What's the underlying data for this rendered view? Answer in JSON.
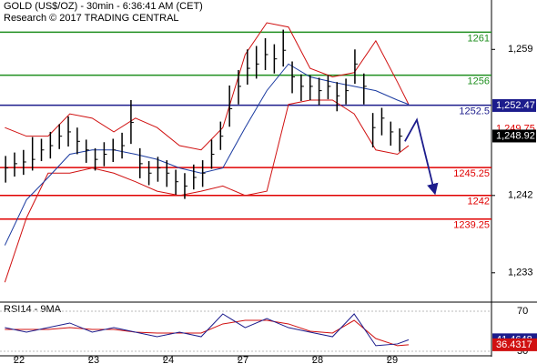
{
  "chart_data": {
    "type": "ohlc",
    "title": "GOLD (US$/OZ) - 30min - 6:36:41 AM (CET)",
    "subtitle": "Research © 2017 TRADING CENTRAL",
    "color": "#000000",
    "x": [
      -0.12,
      0,
      0.12,
      0.24,
      0.36,
      0.48,
      0.6,
      0.72,
      0.84,
      0.96,
      1.08,
      1.2,
      1.32,
      1.44,
      1.56,
      1.68,
      1.8,
      1.92,
      2.04,
      2.16,
      2.28,
      2.4,
      2.52,
      2.64,
      2.76,
      2.88,
      3,
      3.12,
      3.24,
      3.36,
      3.48,
      3.6,
      3.72,
      3.84,
      3.96,
      4.08,
      4.2,
      4.32,
      4.44,
      4.56,
      4.68,
      4.8,
      4.92,
      5.04,
      5.16
    ],
    "high": [
      1246.6,
      1247.0,
      1247.3,
      1248.8,
      1248.6,
      1249.4,
      1250.3,
      1251.2,
      1249.9,
      1248.5,
      1247.5,
      1248.2,
      1248.6,
      1249.3,
      1253.1,
      1247.5,
      1246.0,
      1246.5,
      1246.1,
      1245.0,
      1244.6,
      1245.6,
      1246.1,
      1248.5,
      1250.6,
      1254.8,
      1256.6,
      1259.0,
      1259.4,
      1260.3,
      1259.6,
      1261.3,
      1257.6,
      1256.1,
      1256.0,
      1255.7,
      1256.0,
      1255.2,
      1255.6,
      1259.0,
      1256.2,
      1251.6,
      1252.2,
      1250.6,
      1249.8
    ],
    "low": [
      1243.5,
      1244.2,
      1244.4,
      1244.9,
      1246.0,
      1246.3,
      1247.4,
      1247.7,
      1246.8,
      1245.8,
      1244.9,
      1245.4,
      1245.9,
      1246.3,
      1248.0,
      1244.0,
      1243.2,
      1243.6,
      1243.0,
      1242.1,
      1241.6,
      1242.7,
      1243.0,
      1245.1,
      1247.3,
      1250.0,
      1252.6,
      1254.9,
      1255.6,
      1256.6,
      1256.2,
      1257.0,
      1253.9,
      1253.0,
      1253.1,
      1252.5,
      1253.2,
      1251.8,
      1252.6,
      1255.0,
      1252.6,
      1247.6,
      1249.0,
      1247.8,
      1247.1
    ],
    "close": [
      1245.2,
      1245.7,
      1245.9,
      1246.2,
      1247.3,
      1247.8,
      1248.9,
      1249.4,
      1248.3,
      1247.3,
      1246.2,
      1246.8,
      1247.3,
      1247.8,
      1250.5,
      1245.7,
      1244.6,
      1245.2,
      1244.6,
      1243.6,
      1243.1,
      1244.1,
      1244.6,
      1246.8,
      1248.9,
      1252.1,
      1254.7,
      1256.8,
      1257.3,
      1258.4,
      1257.9,
      1258.9,
      1255.8,
      1254.7,
      1254.7,
      1254.2,
      1254.7,
      1253.6,
      1254.2,
      1257.3,
      1254.7,
      1249.9,
      1251.0,
      1249.4,
      1248.9
    ],
    "xlim": [
      -0.195,
      6.39
    ],
    "xticks": [
      {
        "value": 0,
        "label": "22"
      },
      {
        "value": 1,
        "label": "23"
      },
      {
        "value": 2,
        "label": "24"
      },
      {
        "value": 3,
        "label": "27"
      },
      {
        "value": 4,
        "label": "28"
      },
      {
        "value": 5,
        "label": "29"
      }
    ],
    "ylim": [
      1229.8,
      1264.75
    ],
    "yticks": [
      {
        "value": 1233,
        "label": "1,233"
      },
      {
        "value": 1242,
        "label": "1,242"
      },
      {
        "value": 1259,
        "label": "1,259"
      }
    ],
    "bands": {
      "x": [
        -0.13,
        0.16,
        0.45,
        0.74,
        1.04,
        1.33,
        1.62,
        1.91,
        2.21,
        2.5,
        2.79,
        3.09,
        3.38,
        3.67,
        3.96,
        4.26,
        4.55,
        4.84,
        5.13,
        5.28
      ],
      "upper": [
        1249.9,
        1248.9,
        1248.9,
        1251.5,
        1251.0,
        1249.4,
        1251.0,
        1249.9,
        1247.8,
        1247.3,
        1249.9,
        1258.4,
        1262.1,
        1261.6,
        1256.8,
        1255.8,
        1256.3,
        1260.0,
        1255.2,
        1252.6
      ],
      "lower": [
        1231.9,
        1239.4,
        1244.6,
        1244.6,
        1245.2,
        1244.6,
        1243.6,
        1242.5,
        1242.0,
        1242.5,
        1243.1,
        1242.0,
        1242.5,
        1252.6,
        1253.1,
        1253.1,
        1251.5,
        1247.3,
        1246.8,
        1247.8
      ],
      "middle": [
        1236.2,
        1241.5,
        1244.1,
        1246.8,
        1247.3,
        1247.3,
        1246.8,
        1246.2,
        1245.2,
        1244.6,
        1245.2,
        1249.9,
        1254.2,
        1257.3,
        1255.8,
        1255.2,
        1254.7,
        1254.2,
        1253.1,
        1252.6
      ],
      "band_color": "#d01010",
      "middle_color": "#1a3aa0"
    },
    "levels": [
      {
        "value": 1261,
        "color": "#1f8f1f"
      },
      {
        "value": 1256,
        "color": "#1f8f1f"
      },
      {
        "value": 1252.5,
        "color": "#1c1c8c"
      },
      {
        "value": 1245.25,
        "color": "#e00000"
      },
      {
        "value": 1242,
        "color": "#e00000"
      },
      {
        "value": 1239.25,
        "color": "#e00000"
      }
    ],
    "price_tags": [
      {
        "value": 1252.47,
        "label": "1,252.47",
        "fill": "#1c1c8c",
        "text_color": "#ffffff"
      },
      {
        "value": 1249.75,
        "label": "1,249.75",
        "fill": "#ffffff",
        "text_color": "#e00000"
      },
      {
        "value": 1248.92,
        "label": "1,248.92",
        "fill": "#000000",
        "text_color": "#ffffff"
      }
    ],
    "forecast": {
      "x": [
        5.23,
        5.39,
        5.63
      ],
      "y": [
        1248.3,
        1250.8,
        1242.3
      ],
      "color": "#1c1c8c"
    },
    "rsi": {
      "title": "RSI14 - 9MA",
      "x": [
        -0.13,
        0.16,
        0.45,
        0.74,
        1.04,
        1.33,
        1.62,
        1.91,
        2.21,
        2.5,
        2.79,
        3.09,
        3.38,
        3.67,
        3.96,
        4.26,
        4.55,
        4.84,
        5.13,
        5.28
      ],
      "values": [
        53.6,
        49.1,
        53.6,
        58.2,
        49.1,
        53.6,
        49.1,
        44.5,
        49.1,
        44.5,
        67.3,
        53.6,
        62.7,
        53.6,
        49.1,
        44.5,
        67.3,
        35.5,
        37.3,
        41.4648
      ],
      "ma": [
        51.8,
        51.8,
        51.8,
        53.6,
        51.8,
        51.8,
        49.1,
        48.2,
        48.2,
        48.2,
        57.3,
        60.9,
        60.9,
        57.3,
        50.0,
        48.2,
        60.9,
        42.7,
        35.5,
        36.4317
      ],
      "color": "#1c1c8c",
      "ma_color": "#d01010",
      "ylim": [
        24.5,
        78.2
      ],
      "yticks": [
        70,
        30
      ],
      "tags": [
        {
          "value": 41.4648,
          "fill": "#1c1c8c"
        },
        {
          "value": 36.4317,
          "fill": "#d01010"
        }
      ]
    }
  }
}
